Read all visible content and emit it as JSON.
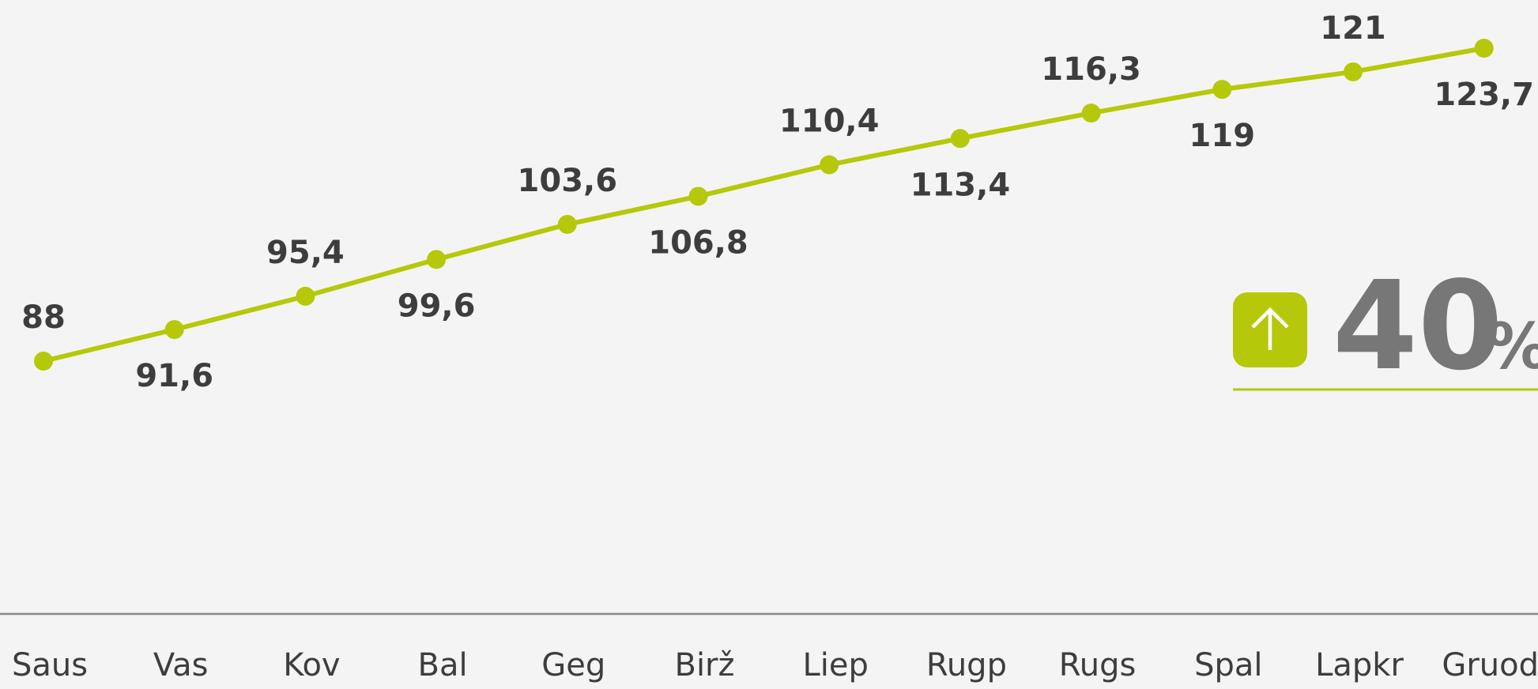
{
  "chart_data": {
    "type": "line",
    "categories": [
      "Saus",
      "Vas",
      "Kov",
      "Bal",
      "Geg",
      "Birž",
      "Liep",
      "Rugp",
      "Rugs",
      "Spal",
      "Lapkr",
      "Gruod"
    ],
    "series": [
      {
        "color": "#b5c90a",
        "values": [
          88,
          91.6,
          95.4,
          99.6,
          103.6,
          106.8,
          110.4,
          113.4,
          116.3,
          119,
          121,
          123.7
        ],
        "value_labels": [
          "88",
          "91,6",
          "95,4",
          "99,6",
          "103,6",
          "106,8",
          "110,4",
          "113,4",
          "116,3",
          "119",
          "121",
          "123,7"
        ]
      }
    ],
    "annotation_value": "40",
    "annotation_unit": "%"
  }
}
